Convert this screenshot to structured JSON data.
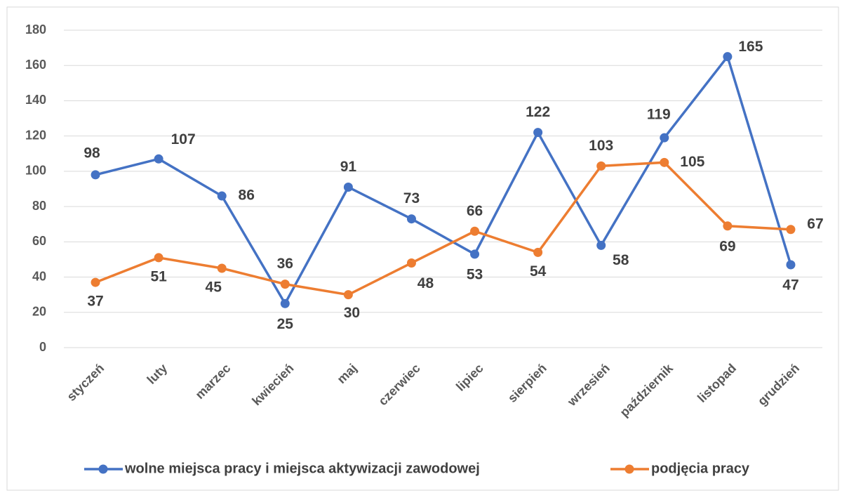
{
  "chart_data": {
    "type": "line",
    "categories": [
      "styczeń",
      "luty",
      "marzec",
      "kwiecień",
      "maj",
      "czerwiec",
      "lipiec",
      "sierpień",
      "wrzesień",
      "październik",
      "listopad",
      "grudzień"
    ],
    "series": [
      {
        "name": "wolne miejsca pracy i miejsca aktywizacji zawodowej",
        "color": "#4472c4",
        "values": [
          98,
          107,
          86,
          25,
          91,
          73,
          53,
          122,
          58,
          119,
          165,
          47
        ]
      },
      {
        "name": "podjęcia pracy",
        "color": "#ed7d31",
        "values": [
          37,
          51,
          45,
          36,
          30,
          48,
          66,
          54,
          103,
          105,
          69,
          67
        ]
      }
    ],
    "ylim": [
      0,
      180
    ],
    "yticks": [
      0,
      20,
      40,
      60,
      80,
      100,
      120,
      140,
      160,
      180
    ],
    "grid": true,
    "legend": "bottom"
  }
}
